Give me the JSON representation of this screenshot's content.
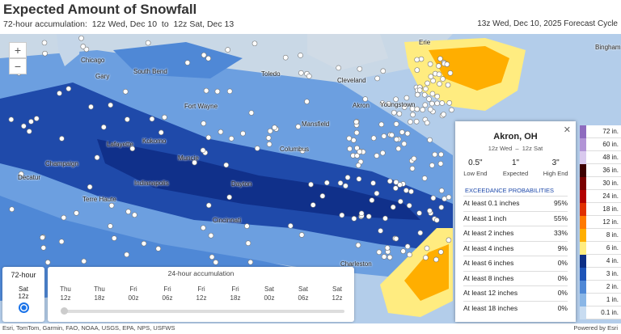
{
  "header": {
    "title": "Expected Amount of Snowfall",
    "subtitle": "72-hour accumulation:  12z Wed, Dec 10  to  12z Sat, Dec 13",
    "cycle": "13z Wed, Dec 10, 2025 Forecast Cycle"
  },
  "map": {
    "zoom_in": "+",
    "zoom_out": "−",
    "cities": [
      "Chicago",
      "Gary",
      "South Bend",
      "Toledo",
      "Cleveland",
      "Akron",
      "Youngstown",
      "Erie",
      "Fort Wayne",
      "Mansfield",
      "Lafayette",
      "Kokomo",
      "Muncie",
      "Columbus",
      "Champaign",
      "Decatur",
      "Indianapolis",
      "Dayton",
      "Terre Haute",
      "Cincinnati",
      "Charleston",
      "Bingham"
    ],
    "attribution": "Esri, TomTom, Garmin, FAO, NOAA, USGS, EPA, NPS, USFWS",
    "powered": "Powered by Esri"
  },
  "popup": {
    "close": "✕",
    "location": "Akron, OH",
    "period": "12z Wed  –  12z Sat",
    "estimates": [
      {
        "amount": "0.5\"",
        "label": "Low End"
      },
      {
        "amount": "1\"",
        "label": "Expected"
      },
      {
        "amount": "3\"",
        "label": "High End"
      }
    ],
    "prob_title": "EXCEEDANCE PROBABILITIES",
    "rows": [
      [
        "At least 0.1 inches",
        "95%"
      ],
      [
        "At least 1 inch",
        "55%"
      ],
      [
        "At least 2 inches",
        "33%"
      ],
      [
        "At least 4 inches",
        "9%"
      ],
      [
        "At least 6 inches",
        "0%"
      ],
      [
        "At least 8 inches",
        "0%"
      ],
      [
        "At least 12 inches",
        "0%"
      ],
      [
        "At least 18 inches",
        "0%"
      ]
    ]
  },
  "legend": [
    {
      "label": "72 in.",
      "color": "#8e6bbf"
    },
    {
      "label": "60 in.",
      "color": "#b294d6"
    },
    {
      "label": "48 in.",
      "color": "#d9c9ee"
    },
    {
      "label": "36 in.",
      "color": "#3d0000"
    },
    {
      "label": "30 in.",
      "color": "#7a0000"
    },
    {
      "label": "24 in.",
      "color": "#b30000"
    },
    {
      "label": "18 in.",
      "color": "#e03000"
    },
    {
      "label": "12 in.",
      "color": "#ff7a00"
    },
    {
      "label": "8 in.",
      "color": "#ffae00"
    },
    {
      "label": "6 in.",
      "color": "#ffec80"
    },
    {
      "label": "4 in.",
      "color": "#0d2f86"
    },
    {
      "label": "3 in.",
      "color": "#1e54b8"
    },
    {
      "label": "2 in.",
      "color": "#4f88d6"
    },
    {
      "label": "1 in.",
      "color": "#8ab6e6"
    },
    {
      "label": "0.1 in.",
      "color": "#c8dcf1"
    }
  ],
  "slider": {
    "total_label": "72-hour",
    "total_day": "Sat",
    "total_hour": "12z",
    "accum_label": "24-hour accumulation",
    "steps": [
      [
        "Thu",
        "12z"
      ],
      [
        "Thu",
        "18z"
      ],
      [
        "Fri",
        "00z"
      ],
      [
        "Fri",
        "06z"
      ],
      [
        "Fri",
        "12z"
      ],
      [
        "Fri",
        "18z"
      ],
      [
        "Sat",
        "00z"
      ],
      [
        "Sat",
        "06z"
      ],
      [
        "Sat",
        "12z"
      ]
    ]
  }
}
